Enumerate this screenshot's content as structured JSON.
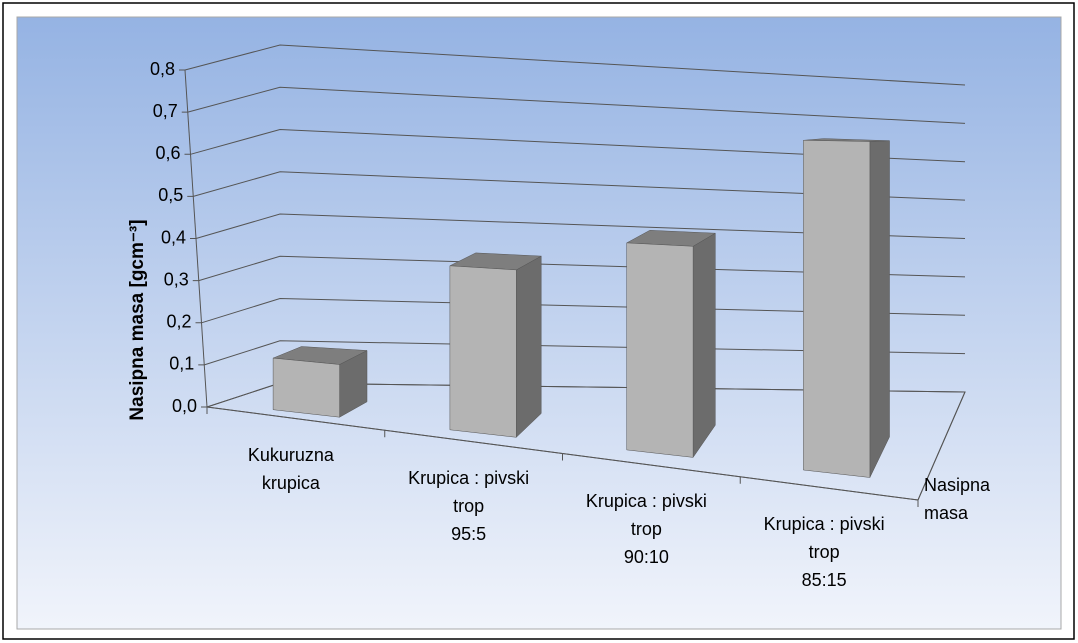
{
  "chart_data": {
    "type": "bar3d",
    "categories": [
      "Kukuruzna\nkrupica",
      "Krupica : pivski\ntrop\n95:5",
      "Krupica : pivski\ntrop\n90:10",
      "Krupica : pivski\ntrop\n85:15"
    ],
    "series": [
      {
        "name": "Nasipna masa",
        "color": "#b4b4b4",
        "values": [
          0.12,
          0.36,
          0.43,
          0.65
        ]
      }
    ],
    "y_label": "Nasipna masa [gcm⁻³]",
    "ylim": [
      0,
      0.8
    ],
    "yticks": [
      {
        "value": 0,
        "label": "0,0"
      },
      {
        "value": 0.1,
        "label": "0,1"
      },
      {
        "value": 0.2,
        "label": "0,2"
      },
      {
        "value": 0.3,
        "label": "0,3"
      },
      {
        "value": 0.4,
        "label": "0,4"
      },
      {
        "value": 0.5,
        "label": "0,5"
      },
      {
        "value": 0.6,
        "label": "0,6"
      },
      {
        "value": 0.7,
        "label": "0,7"
      },
      {
        "value": 0.8,
        "label": "0,8"
      }
    ],
    "grid": true
  }
}
